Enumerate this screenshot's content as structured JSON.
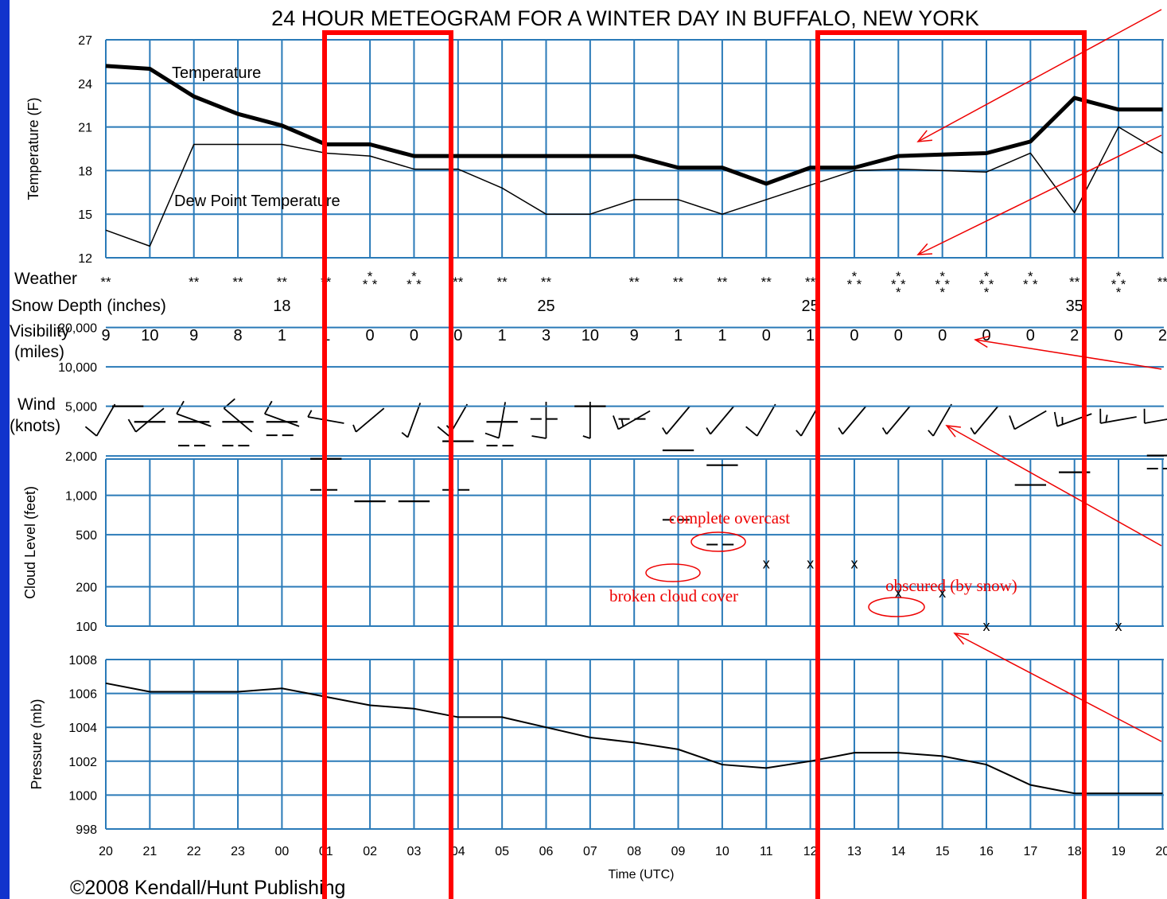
{
  "title": "24 HOUR METEOGRAM FOR A WINTER DAY IN BUFFALO, NEW YORK",
  "copyright": "©2008 Kendall/Hunt Publishing",
  "xlabel": "Time (UTC)",
  "colors": {
    "background": "#1133cc",
    "grid": "#2a7ab8",
    "annotation": "#ee0000",
    "data": "#000000"
  },
  "chart_data": {
    "type": "line",
    "hours": [
      "20",
      "21",
      "22",
      "23",
      "00",
      "01",
      "02",
      "03",
      "04",
      "05",
      "06",
      "07",
      "08",
      "09",
      "10",
      "11",
      "12",
      "13",
      "14",
      "15",
      "16",
      "17",
      "18",
      "19",
      "20"
    ],
    "temperature_panel": {
      "ylabel": "Temperature (F)",
      "ylim": [
        12,
        27
      ],
      "yticks": [
        27,
        24,
        21,
        18,
        15,
        12
      ],
      "series": [
        {
          "name": "Temperature",
          "values": [
            25.2,
            25.0,
            23.1,
            21.9,
            21.1,
            19.8,
            19.8,
            19.0,
            19.0,
            19.0,
            19.0,
            19.0,
            19.0,
            18.2,
            18.2,
            17.1,
            18.2,
            18.2,
            19.0,
            19.1,
            19.2,
            20.0,
            23.0,
            22.2,
            22.2
          ]
        },
        {
          "name": "Dew Point Temperature",
          "values": [
            13.9,
            12.8,
            19.8,
            19.8,
            19.8,
            19.2,
            19.0,
            18.1,
            18.1,
            16.8,
            15.0,
            15.0,
            16.0,
            16.0,
            15.0,
            16.0,
            17.0,
            18.0,
            18.1,
            18.0,
            17.9,
            19.2,
            15.1,
            21.0,
            19.2
          ]
        }
      ]
    },
    "weather_row": {
      "label": "Weather",
      "symbols": [
        "**",
        "",
        "**",
        "**",
        "**",
        "**",
        "***",
        "***",
        "**",
        "**",
        "**",
        "",
        "**",
        "**",
        "**",
        "**",
        "**",
        "***",
        "****",
        "****",
        "****",
        "***",
        "**",
        "****",
        "**"
      ]
    },
    "snow_depth_row": {
      "label": "Snow Depth (inches)",
      "values": [
        "",
        "",
        "",
        "",
        "18",
        "",
        "",
        "",
        "",
        "",
        "25",
        "",
        "",
        "",
        "",
        "",
        "25",
        "",
        "",
        "",
        "",
        "",
        "35",
        "",
        ""
      ]
    },
    "visibility_row": {
      "label_line1": "Visibility",
      "label_line2": "(miles)",
      "values": [
        "9",
        "10",
        "9",
        "8",
        "1",
        "1",
        "0",
        "0",
        "0",
        "1",
        "3",
        "10",
        "9",
        "1",
        "1",
        "0",
        "1",
        "0",
        "0",
        "0",
        "0",
        "0",
        "2",
        "0",
        "2"
      ]
    },
    "wind_row": {
      "label_line1": "Wind",
      "label_line2": "(knots)",
      "barbs": [
        {
          "dir": 210,
          "spd": 10
        },
        {
          "dir": 230,
          "spd": 10
        },
        {
          "dir": 290,
          "spd": 10
        },
        {
          "dir": 310,
          "spd": 10
        },
        {
          "dir": 290,
          "spd": 10
        },
        {
          "dir": 280,
          "spd": 5
        },
        {
          "dir": 230,
          "spd": 5
        },
        {
          "dir": 200,
          "spd": 5
        },
        {
          "dir": 210,
          "spd": 15
        },
        {
          "dir": 190,
          "spd": 10
        },
        {
          "dir": 180,
          "spd": 10
        },
        {
          "dir": 180,
          "spd": 5
        },
        {
          "dir": 240,
          "spd": 15
        },
        {
          "dir": 220,
          "spd": 5
        },
        {
          "dir": 220,
          "spd": 5
        },
        {
          "dir": 210,
          "spd": 10
        },
        {
          "dir": 210,
          "spd": 5
        },
        {
          "dir": 220,
          "spd": 5
        },
        {
          "dir": 220,
          "spd": 5
        },
        {
          "dir": 210,
          "spd": 5
        },
        {
          "dir": 220,
          "spd": 5
        },
        {
          "dir": 240,
          "spd": 10
        },
        {
          "dir": 250,
          "spd": 15
        },
        {
          "dir": 260,
          "spd": 15
        },
        {
          "dir": 260,
          "spd": 10
        }
      ]
    },
    "cloud_panel": {
      "ylabel": "Cloud Level (feet)",
      "ytick_labels": [
        "20,000",
        "10,000",
        "5,000",
        "2,000",
        "1,000",
        "500",
        "200",
        "100"
      ],
      "ytick_values": [
        20000,
        10000,
        5000,
        2000,
        1000,
        500,
        200,
        100
      ],
      "layers": [
        {
          "hour": 0,
          "feet": 5000,
          "cover": "overcast"
        },
        {
          "hour": 1,
          "feet": 3800,
          "cover": "overcast"
        },
        {
          "hour": 2,
          "feet": 3800,
          "cover": "overcast"
        },
        {
          "hour": 2,
          "feet": 2500,
          "cover": "broken"
        },
        {
          "hour": 3,
          "feet": 3800,
          "cover": "overcast"
        },
        {
          "hour": 3,
          "feet": 2500,
          "cover": "broken"
        },
        {
          "hour": 4,
          "feet": 3800,
          "cover": "overcast"
        },
        {
          "hour": 4,
          "feet": 3000,
          "cover": "broken"
        },
        {
          "hour": 5,
          "feet": 1900,
          "cover": "overcast"
        },
        {
          "hour": 5,
          "feet": 1100,
          "cover": "broken"
        },
        {
          "hour": 6,
          "feet": 900,
          "cover": "overcast"
        },
        {
          "hour": 7,
          "feet": 900,
          "cover": "overcast"
        },
        {
          "hour": 8,
          "feet": 2700,
          "cover": "overcast"
        },
        {
          "hour": 8,
          "feet": 1100,
          "cover": "broken"
        },
        {
          "hour": 9,
          "feet": 3800,
          "cover": "overcast"
        },
        {
          "hour": 9,
          "feet": 2500,
          "cover": "broken"
        },
        {
          "hour": 10,
          "feet": 4000,
          "cover": "broken"
        },
        {
          "hour": 11,
          "feet": 5000,
          "cover": "overcast"
        },
        {
          "hour": 12,
          "feet": 4000,
          "cover": "broken"
        },
        {
          "hour": 13,
          "feet": 2300,
          "cover": "overcast"
        },
        {
          "hour": 13,
          "feet": 650,
          "cover": "broken"
        },
        {
          "hour": 14,
          "feet": 1700,
          "cover": "overcast"
        },
        {
          "hour": 14,
          "feet": 420,
          "cover": "broken"
        },
        {
          "hour": 15,
          "feet": 300,
          "cover": "obscured"
        },
        {
          "hour": 16,
          "feet": 300,
          "cover": "obscured"
        },
        {
          "hour": 17,
          "feet": 300,
          "cover": "obscured"
        },
        {
          "hour": 18,
          "feet": 180,
          "cover": "obscured"
        },
        {
          "hour": 19,
          "feet": 180,
          "cover": "obscured"
        },
        {
          "hour": 20,
          "feet": 100,
          "cover": "obscured"
        },
        {
          "hour": 21,
          "feet": 1200,
          "cover": "overcast"
        },
        {
          "hour": 22,
          "feet": 1500,
          "cover": "overcast"
        },
        {
          "hour": 23,
          "feet": 100,
          "cover": "obscured"
        },
        {
          "hour": 24,
          "feet": 2100,
          "cover": "overcast"
        },
        {
          "hour": 24,
          "feet": 1600,
          "cover": "broken"
        }
      ],
      "annotations": [
        "complete overcast",
        "broken cloud cover",
        "obscured (by snow)"
      ]
    },
    "pressure_panel": {
      "ylabel": "Pressure (mb)",
      "ylim": [
        998,
        1008
      ],
      "yticks": [
        1008,
        1006,
        1004,
        1002,
        1000,
        998
      ],
      "values": [
        1006.6,
        1006.1,
        1006.1,
        1006.1,
        1006.3,
        1005.8,
        1005.3,
        1005.1,
        1004.6,
        1004.6,
        1004.0,
        1003.4,
        1003.1,
        1002.7,
        1001.8,
        1001.6,
        1002.0,
        1002.5,
        1002.5,
        1002.3,
        1001.8,
        1000.6,
        1000.1,
        1000.1,
        1000.1
      ]
    },
    "highlight_ranges": [
      [
        "01",
        "03"
      ],
      [
        "12",
        "18"
      ]
    ]
  }
}
